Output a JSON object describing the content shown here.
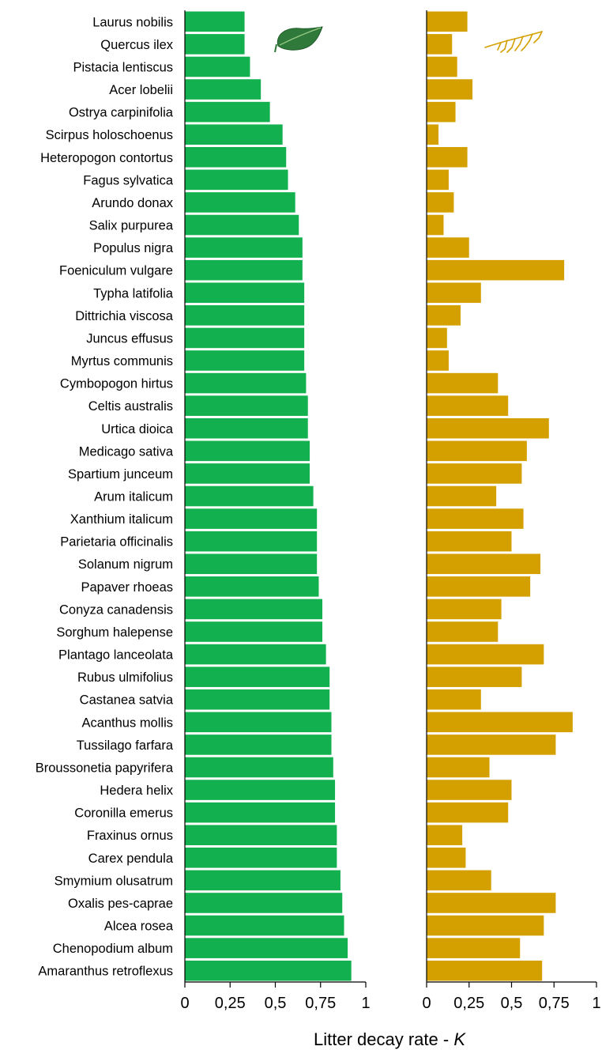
{
  "chart_data": {
    "type": "bar",
    "orientation": "horizontal",
    "categories": [
      "Laurus nobilis",
      "Quercus ilex",
      "Pistacia lentiscus",
      "Acer lobelii",
      "Ostrya carpinifolia",
      "Scirpus holoschoenus",
      "Heteropogon contortus",
      "Fagus sylvatica",
      "Arundo donax",
      "Salix purpurea",
      "Populus nigra",
      "Foeniculum vulgare",
      "Typha latifolia",
      "Dittrichia viscosa",
      "Juncus effusus",
      "Myrtus communis",
      "Cymbopogon hirtus",
      "Celtis australis",
      "Urtica dioica",
      "Medicago sativa",
      "Spartium junceum",
      "Arum italicum",
      "Xanthium italicum",
      "Parietaria officinalis",
      "Solanum nigrum",
      "Papaver rhoeas",
      "Conyza canadensis",
      "Sorghum halepense",
      "Plantago lanceolata",
      "Rubus ulmifolius",
      "Castanea satvia",
      "Acanthus mollis",
      "Tussilago farfara",
      "Broussonetia papyrifera",
      "Hedera helix",
      "Coronilla emerus",
      "Fraxinus ornus",
      "Carex pendula",
      "Smymium olusatrum",
      "Oxalis pes-caprae",
      "Alcea rosea",
      "Chenopodium album",
      "Amaranthus retroflexus"
    ],
    "series": [
      {
        "color": "#13b04f",
        "panel": "leaf",
        "values": [
          0.33,
          0.33,
          0.36,
          0.42,
          0.47,
          0.54,
          0.56,
          0.57,
          0.61,
          0.63,
          0.65,
          0.65,
          0.66,
          0.66,
          0.66,
          0.66,
          0.67,
          0.68,
          0.68,
          0.69,
          0.69,
          0.71,
          0.73,
          0.73,
          0.73,
          0.74,
          0.76,
          0.76,
          0.78,
          0.8,
          0.8,
          0.81,
          0.81,
          0.82,
          0.83,
          0.83,
          0.84,
          0.84,
          0.86,
          0.87,
          0.88,
          0.9,
          0.92
        ]
      },
      {
        "color": "#d4a000",
        "panel": "root",
        "values": [
          0.24,
          0.15,
          0.18,
          0.27,
          0.17,
          0.07,
          0.24,
          0.13,
          0.16,
          0.1,
          0.25,
          0.81,
          0.32,
          0.2,
          0.12,
          0.13,
          0.42,
          0.48,
          0.72,
          0.59,
          0.56,
          0.41,
          0.57,
          0.5,
          0.67,
          0.61,
          0.44,
          0.42,
          0.69,
          0.56,
          0.32,
          0.86,
          0.76,
          0.37,
          0.5,
          0.48,
          0.21,
          0.23,
          0.38,
          0.76,
          0.69,
          0.55,
          0.68
        ]
      }
    ],
    "xlim": [
      0,
      1
    ],
    "xticks": [
      "0",
      "0,25",
      "0,5",
      "0,75",
      "1"
    ],
    "xlabel": "Litter decay rate - ",
    "xlabel_italic": "K",
    "ylabel": "",
    "title": "",
    "grid": false,
    "legend": "none"
  },
  "icons": {
    "left_panel": "leaf-icon",
    "right_panel": "root-icon"
  }
}
